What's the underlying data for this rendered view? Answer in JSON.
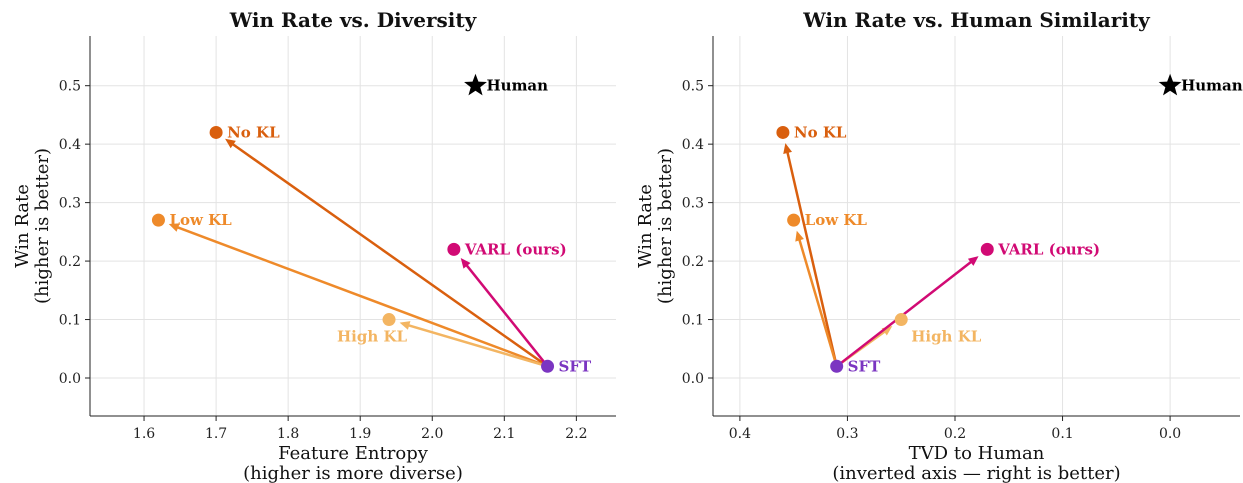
{
  "colors": {
    "no_kl": "#d95f0e",
    "low_kl": "#ee8a2a",
    "high_kl": "#f3b562",
    "varl": "#d10a74",
    "sft": "#7b35c1",
    "human": "#000000"
  },
  "chart_data": [
    {
      "type": "scatter",
      "title": "Win Rate vs. Diversity",
      "xlabel": [
        "Feature Entropy",
        "(higher is more diverse)"
      ],
      "ylabel": [
        "Win Rate",
        "(higher is better)"
      ],
      "xlim": [
        1.525,
        2.255
      ],
      "ylim": [
        -0.065,
        0.585
      ],
      "x_inverted": false,
      "xticks": [
        1.6,
        1.7,
        1.8,
        1.9,
        2.0,
        2.1,
        2.2
      ],
      "xtick_labels": [
        "1.6",
        "1.7",
        "1.8",
        "1.9",
        "2.0",
        "2.1",
        "2.2"
      ],
      "yticks": [
        0.0,
        0.1,
        0.2,
        0.3,
        0.4,
        0.5
      ],
      "ytick_labels": [
        "0.0",
        "0.1",
        "0.2",
        "0.3",
        "0.4",
        "0.5"
      ],
      "grid": true,
      "points": [
        {
          "label": "No KL",
          "x": 1.7,
          "y": 0.42,
          "color": "no_kl",
          "marker": "circle",
          "label_pos": "right"
        },
        {
          "label": "Low KL",
          "x": 1.62,
          "y": 0.27,
          "color": "low_kl",
          "marker": "circle",
          "label_pos": "right"
        },
        {
          "label": "High KL",
          "x": 1.94,
          "y": 0.1,
          "color": "high_kl",
          "marker": "circle",
          "label_pos": "below-left"
        },
        {
          "label": "VARL (ours)",
          "x": 2.03,
          "y": 0.22,
          "color": "varl",
          "marker": "circle",
          "label_pos": "right"
        },
        {
          "label": "SFT",
          "x": 2.16,
          "y": 0.02,
          "color": "sft",
          "marker": "circle",
          "label_pos": "right"
        },
        {
          "label": "Human",
          "x": 2.06,
          "y": 0.5,
          "color": "human",
          "marker": "star",
          "label_pos": "right"
        }
      ],
      "arrows": [
        {
          "from": "SFT",
          "to": "No KL",
          "color": "no_kl"
        },
        {
          "from": "SFT",
          "to": "Low KL",
          "color": "low_kl"
        },
        {
          "from": "SFT",
          "to": "High KL",
          "color": "high_kl"
        },
        {
          "from": "SFT",
          "to": "VARL (ours)",
          "color": "varl"
        }
      ]
    },
    {
      "type": "scatter",
      "title": "Win Rate vs. Human Similarity",
      "xlabel": [
        "TVD to Human",
        "(inverted axis — right is better)"
      ],
      "ylabel": [
        "Win Rate",
        "(higher is better)"
      ],
      "xlim": [
        0.425,
        -0.065
      ],
      "ylim": [
        -0.065,
        0.585
      ],
      "x_inverted": true,
      "xticks": [
        0.4,
        0.3,
        0.2,
        0.1,
        0.0
      ],
      "xtick_labels": [
        "0.4",
        "0.3",
        "0.2",
        "0.1",
        "0.0"
      ],
      "yticks": [
        0.0,
        0.1,
        0.2,
        0.3,
        0.4,
        0.5
      ],
      "ytick_labels": [
        "0.0",
        "0.1",
        "0.2",
        "0.3",
        "0.4",
        "0.5"
      ],
      "grid": true,
      "points": [
        {
          "label": "No KL",
          "x": 0.36,
          "y": 0.42,
          "color": "no_kl",
          "marker": "circle",
          "label_pos": "right"
        },
        {
          "label": "Low KL",
          "x": 0.35,
          "y": 0.27,
          "color": "low_kl",
          "marker": "circle",
          "label_pos": "right"
        },
        {
          "label": "High KL",
          "x": 0.25,
          "y": 0.1,
          "color": "high_kl",
          "marker": "circle",
          "label_pos": "below-right"
        },
        {
          "label": "VARL (ours)",
          "x": 0.17,
          "y": 0.22,
          "color": "varl",
          "marker": "circle",
          "label_pos": "right"
        },
        {
          "label": "SFT",
          "x": 0.31,
          "y": 0.02,
          "color": "sft",
          "marker": "circle",
          "label_pos": "right"
        },
        {
          "label": "Human",
          "x": 0.0,
          "y": 0.5,
          "color": "human",
          "marker": "star",
          "label_pos": "right"
        }
      ],
      "arrows": [
        {
          "from": "SFT",
          "to": "No KL",
          "color": "no_kl"
        },
        {
          "from": "SFT",
          "to": "Low KL",
          "color": "low_kl"
        },
        {
          "from": "SFT",
          "to": "High KL",
          "color": "high_kl"
        },
        {
          "from": "SFT",
          "to": "VARL (ours)",
          "color": "varl"
        }
      ]
    }
  ]
}
